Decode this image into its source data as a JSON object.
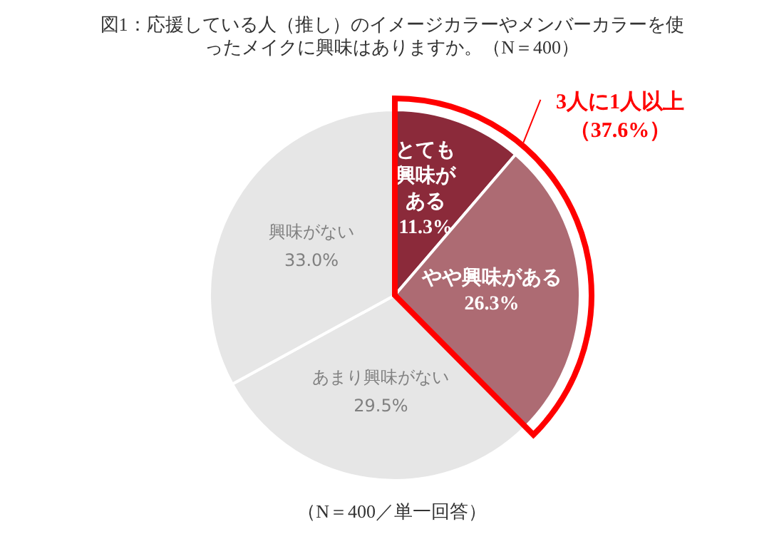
{
  "chart_data": {
    "type": "pie",
    "title": "図1：応援している人（推し）のイメージカラーやメンバーカラーを使ったメイクに興味はありますか。（N＝400）",
    "categories": [
      "とても興味がある",
      "やや興味がある",
      "あまり興味がない",
      "興味がない"
    ],
    "values": [
      11.3,
      26.3,
      29.5,
      33.0
    ],
    "colors": [
      "#8b2a3a",
      "#ad6b73",
      "#e6e6e6",
      "#e6e6e6"
    ],
    "value_labels": [
      "11.3%",
      "26.3%",
      "29.5%",
      "33.0%"
    ],
    "annotations": [
      "3人に1人以上（37.6%）",
      "（N＝400／単一回答）"
    ],
    "legend": false
  }
}
